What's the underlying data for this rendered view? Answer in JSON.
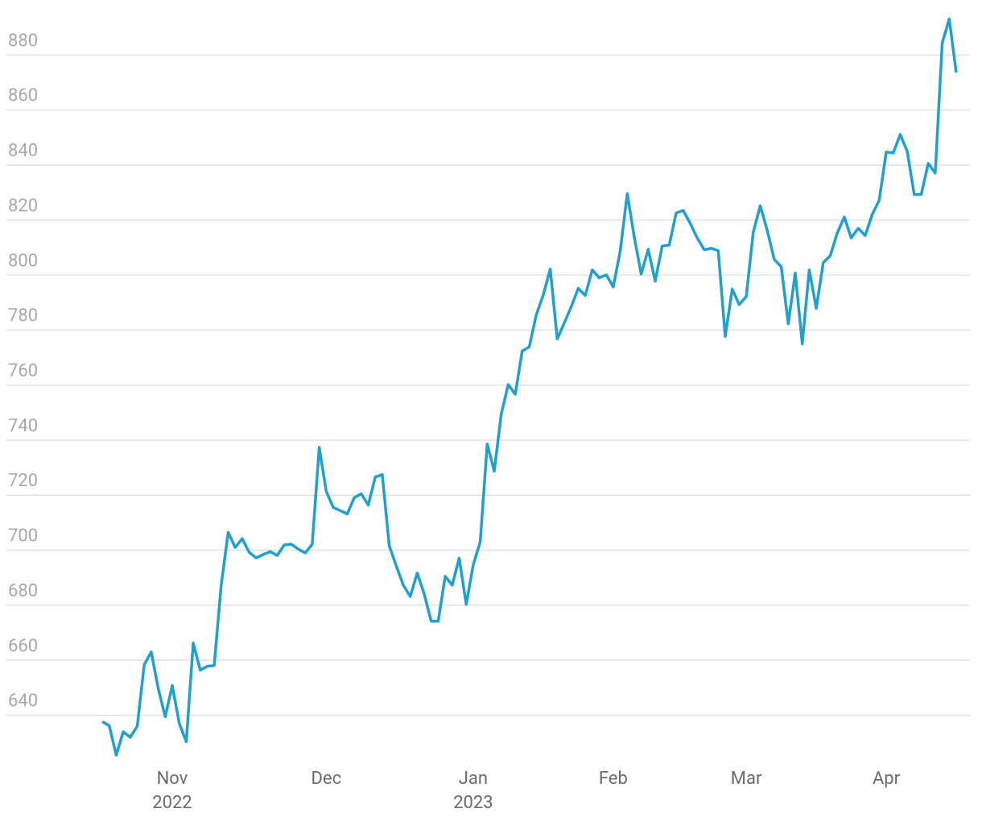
{
  "chart_data": {
    "type": "line",
    "color": "#1ea0d0",
    "grid": true,
    "ylim": [
      620,
      900
    ],
    "yticks": [
      640,
      660,
      680,
      700,
      720,
      740,
      760,
      780,
      800,
      820,
      840,
      860,
      880
    ],
    "categories": [
      null,
      null,
      null,
      null,
      null,
      null,
      null,
      null,
      null,
      null,
      "Nov 2022",
      null,
      null,
      null,
      null,
      null,
      null,
      null,
      null,
      null,
      null,
      null,
      null,
      null,
      null,
      null,
      null,
      null,
      null,
      null,
      null,
      null,
      "Dec",
      null,
      null,
      null,
      null,
      null,
      null,
      null,
      null,
      null,
      null,
      null,
      null,
      null,
      null,
      null,
      null,
      null,
      null,
      null,
      null,
      "Jan 2023",
      null,
      null,
      null,
      null,
      null,
      null,
      null,
      null,
      null,
      null,
      null,
      null,
      null,
      null,
      null,
      null,
      null,
      null,
      null,
      "Feb",
      null,
      null,
      null,
      null,
      null,
      null,
      null,
      null,
      null,
      null,
      null,
      null,
      null,
      null,
      null,
      null,
      null,
      null,
      "Mar",
      null,
      null,
      null,
      null,
      null,
      null,
      null,
      null,
      null,
      null,
      null,
      null,
      null,
      null,
      null,
      null,
      null,
      null,
      null,
      "Apr",
      null,
      null,
      null,
      null,
      null,
      null,
      null,
      null,
      null,
      null
    ],
    "values": [
      637.7,
      636.2,
      625.5,
      634,
      632,
      636,
      658.4,
      663,
      649.7,
      639.5,
      650.8,
      637.1,
      630.4,
      666.3,
      656.4,
      657.8,
      658.1,
      687.3,
      706.5,
      701,
      704.2,
      699.2,
      697.2,
      698.4,
      699.5,
      698.1,
      701.9,
      702.2,
      700.4,
      699,
      702.2,
      737.4,
      721.4,
      715.6,
      714.4,
      713.2,
      719.1,
      720.5,
      716.4,
      726.6,
      727.5,
      701.6,
      694.3,
      687.3,
      683.2,
      691.7,
      684.1,
      674.2,
      674.2,
      690.5,
      687.3,
      697.1,
      680.3,
      694.6,
      703,
      738.6,
      728.7,
      749.4,
      760.2,
      756.7,
      772.4,
      773.9,
      785.5,
      792.8,
      802.2,
      776.8,
      782.6,
      788.5,
      795.2,
      792.6,
      801.9,
      799,
      800.1,
      795.7,
      808.9,
      829.6,
      813.8,
      800.4,
      809.4,
      797.8,
      810.6,
      810.9,
      822.6,
      823.5,
      818.8,
      813.5,
      809.2,
      809.7,
      808.9,
      777.7,
      794.9,
      789.3,
      792.2,
      815.6,
      825.2,
      816.2,
      805.7,
      803,
      782.3,
      800.7,
      775,
      801.9,
      787.9,
      804.5,
      807.1,
      815.3,
      821.1,
      813.5,
      817,
      814.4,
      822,
      827.2,
      844.7,
      844.4,
      851.1,
      845,
      829.3,
      829.3,
      840.6,
      837.1,
      884.4,
      893.1,
      873.6
    ]
  }
}
